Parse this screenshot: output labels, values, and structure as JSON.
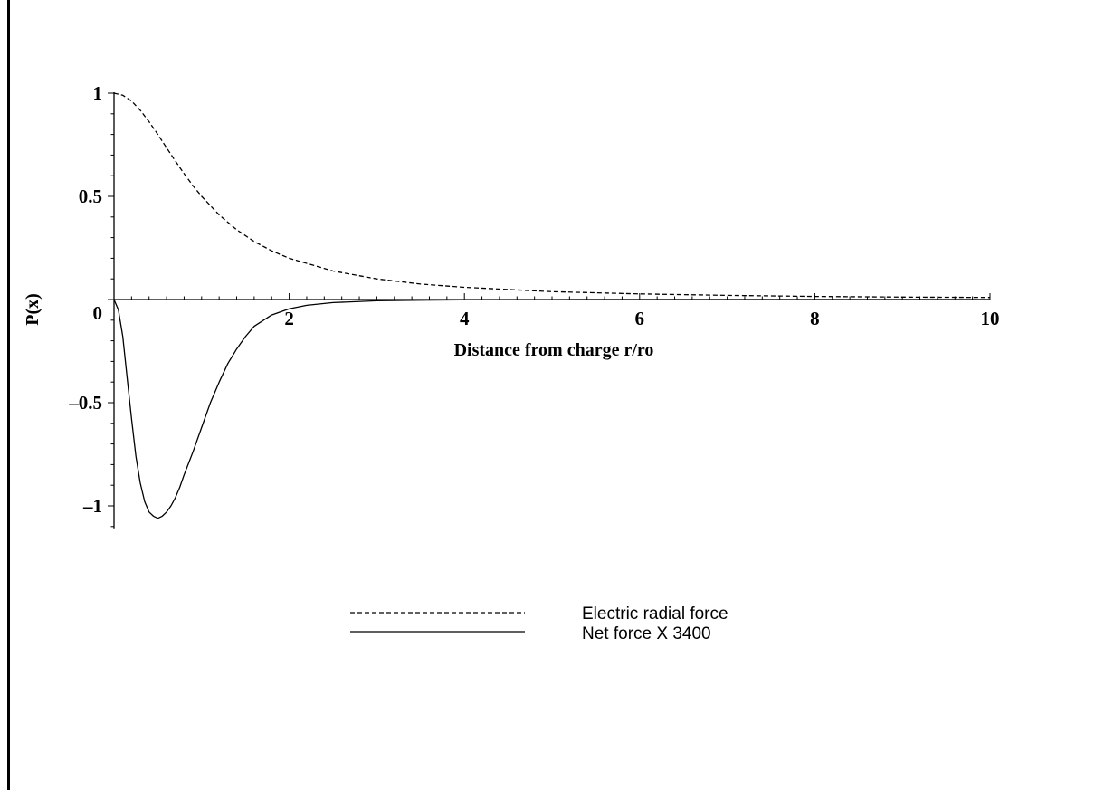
{
  "chart_data": {
    "type": "line",
    "xlabel": "Distance from charge r/ro",
    "ylabel": "P(x)",
    "xlim": [
      0,
      10
    ],
    "ylim": [
      -1.1,
      1.0
    ],
    "x_ticks": [
      {
        "value": 2,
        "label": "2"
      },
      {
        "value": 4,
        "label": "4"
      },
      {
        "value": 6,
        "label": "6"
      },
      {
        "value": 8,
        "label": "8"
      },
      {
        "value": 10,
        "label": "10"
      }
    ],
    "y_ticks": [
      {
        "value": 1,
        "label": "1"
      },
      {
        "value": 0.5,
        "label": "0.5"
      },
      {
        "value": 0,
        "label": "0"
      },
      {
        "value": -0.5,
        "label": "–0.5"
      },
      {
        "value": -1,
        "label": "–1"
      }
    ],
    "grid": false,
    "legend_position": "bottom-center",
    "series": [
      {
        "name": "Electric radial force",
        "style": "dashed",
        "x": [
          0,
          0.1,
          0.2,
          0.3,
          0.4,
          0.5,
          0.6,
          0.7,
          0.8,
          0.9,
          1.0,
          1.2,
          1.4,
          1.6,
          1.8,
          2.0,
          2.5,
          3.0,
          3.5,
          4.0,
          5.0,
          6.0,
          7.0,
          8.0,
          9.0,
          10.0
        ],
        "y": [
          1.0,
          0.99,
          0.962,
          0.917,
          0.862,
          0.8,
          0.735,
          0.671,
          0.61,
          0.552,
          0.5,
          0.41,
          0.338,
          0.281,
          0.236,
          0.2,
          0.138,
          0.1,
          0.075,
          0.059,
          0.038,
          0.027,
          0.02,
          0.015,
          0.012,
          0.01
        ]
      },
      {
        "name": "Net force X 3400",
        "style": "solid",
        "x": [
          0,
          0.05,
          0.1,
          0.15,
          0.2,
          0.25,
          0.3,
          0.35,
          0.4,
          0.45,
          0.5,
          0.55,
          0.6,
          0.65,
          0.7,
          0.75,
          0.8,
          0.9,
          1.0,
          1.1,
          1.2,
          1.3,
          1.4,
          1.5,
          1.6,
          1.8,
          2.0,
          2.2,
          2.5,
          3.0,
          3.5,
          4.0,
          5.0,
          6.0,
          7.0,
          8.0,
          9.0,
          10.0
        ],
        "y": [
          0,
          -0.05,
          -0.18,
          -0.38,
          -0.58,
          -0.76,
          -0.89,
          -0.98,
          -1.03,
          -1.05,
          -1.06,
          -1.05,
          -1.03,
          -1.0,
          -0.96,
          -0.91,
          -0.85,
          -0.74,
          -0.62,
          -0.5,
          -0.4,
          -0.31,
          -0.24,
          -0.18,
          -0.13,
          -0.075,
          -0.045,
          -0.028,
          -0.015,
          -0.006,
          -0.003,
          -0.0015,
          -0.0005,
          -0.0002,
          -0.0001,
          0,
          0,
          0
        ]
      }
    ]
  }
}
